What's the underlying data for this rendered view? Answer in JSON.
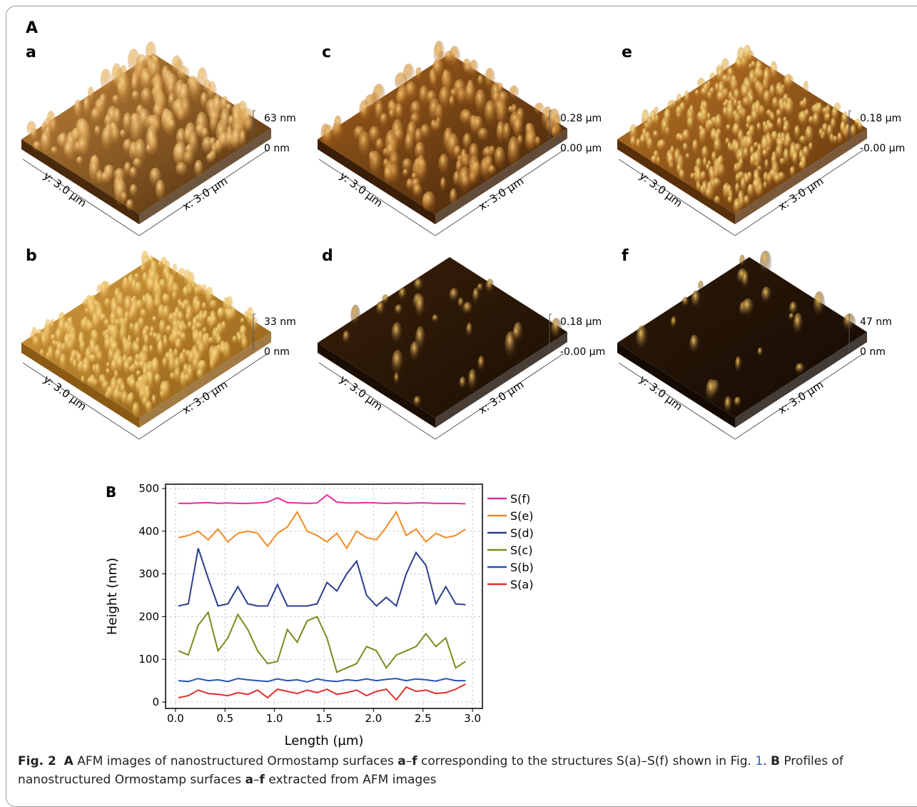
{
  "figure_label": "A",
  "panels": [
    {
      "label": "a",
      "z_top": "63 nm",
      "z_bottom": "0 nm",
      "y_axis": "y: 3.0 µm",
      "x_axis": "x: 3.0 µm"
    },
    {
      "label": "b",
      "z_top": "33 nm",
      "z_bottom": "0 nm",
      "y_axis": "y: 3.0 µm",
      "x_axis": "x: 3.0 µm"
    },
    {
      "label": "c",
      "z_top": "0.28 µm",
      "z_bottom": "0.00 µm",
      "y_axis": "y: 3.0 µm",
      "x_axis": "x: 3.0 µm"
    },
    {
      "label": "d",
      "z_top": "0.18 µm",
      "z_bottom": "-0.00 µm",
      "y_axis": "y: 3.0 µm",
      "x_axis": "x: 3.0 µm"
    },
    {
      "label": "e",
      "z_top": "0.18 µm",
      "z_bottom": "-0.00 µm",
      "y_axis": "y: 3.0 µm",
      "x_axis": "x: 3.0 µm"
    },
    {
      "label": "f",
      "z_top": "47 nm",
      "z_bottom": "0 nm",
      "y_axis": "y: 3.0 µm",
      "x_axis": "x: 3.0 µm"
    }
  ],
  "chart_data": {
    "type": "line",
    "panel_label": "B",
    "x_label": "Length (µm)",
    "y_label": "Height (nm)",
    "x": [
      0.03,
      0.13,
      0.23,
      0.33,
      0.43,
      0.53,
      0.63,
      0.73,
      0.83,
      0.93,
      1.03,
      1.13,
      1.23,
      1.33,
      1.43,
      1.53,
      1.63,
      1.73,
      1.83,
      1.93,
      2.03,
      2.13,
      2.23,
      2.33,
      2.43,
      2.53,
      2.63,
      2.73,
      2.83,
      2.93
    ],
    "series": [
      {
        "name": "S(f)",
        "color": "#e0309a",
        "values": [
          465,
          465,
          466,
          467,
          465,
          466,
          465,
          465,
          466,
          468,
          478,
          467,
          466,
          465,
          466,
          485,
          468,
          466,
          466,
          467,
          466,
          465,
          466,
          465,
          466,
          466,
          465,
          465,
          465,
          464
        ]
      },
      {
        "name": "S(e)",
        "color": "#f08a24",
        "values": [
          385,
          390,
          400,
          380,
          405,
          375,
          395,
          400,
          395,
          365,
          395,
          410,
          445,
          400,
          390,
          375,
          395,
          360,
          400,
          385,
          380,
          410,
          445,
          390,
          405,
          375,
          395,
          385,
          390,
          405
        ]
      },
      {
        "name": "S(d)",
        "color": "#2b3d8f",
        "values": [
          225,
          230,
          360,
          290,
          225,
          230,
          270,
          230,
          225,
          225,
          275,
          225,
          225,
          225,
          230,
          280,
          260,
          300,
          330,
          250,
          225,
          245,
          225,
          300,
          350,
          320,
          230,
          270,
          230,
          228
        ]
      },
      {
        "name": "S(c)",
        "color": "#7a8c1e",
        "values": [
          120,
          110,
          180,
          210,
          120,
          150,
          205,
          170,
          120,
          90,
          95,
          170,
          140,
          190,
          200,
          150,
          70,
          80,
          90,
          130,
          120,
          80,
          110,
          120,
          130,
          160,
          130,
          150,
          80,
          95
        ]
      },
      {
        "name": "S(b)",
        "color": "#2454b8",
        "values": [
          50,
          48,
          55,
          50,
          52,
          48,
          55,
          52,
          50,
          48,
          54,
          50,
          52,
          47,
          54,
          50,
          48,
          52,
          50,
          54,
          50,
          53,
          55,
          50,
          54,
          52,
          49,
          55,
          50,
          50
        ]
      },
      {
        "name": "S(a)",
        "color": "#e03030",
        "values": [
          10,
          15,
          28,
          20,
          18,
          15,
          22,
          18,
          28,
          10,
          30,
          25,
          20,
          28,
          22,
          30,
          18,
          22,
          28,
          15,
          25,
          30,
          5,
          35,
          25,
          28,
          20,
          22,
          30,
          42
        ]
      }
    ],
    "xlim": [
      -0.1,
      3.1
    ],
    "ylim": [
      -15,
      510
    ],
    "xticks": [
      {
        "value": 0,
        "label": "0.0"
      },
      0.5,
      {
        "value": 1,
        "label": "1.0"
      },
      1.5,
      {
        "value": 2,
        "label": "2.0"
      },
      2.5,
      {
        "value": 3,
        "label": "3.0"
      }
    ],
    "yticks": [
      0,
      100,
      200,
      300,
      400,
      500
    ],
    "grid": true
  },
  "caption": {
    "runs": [
      "Fig. 2",
      "A",
      "AFM images of nanostructured Ormostamp surfaces",
      "a",
      "–",
      "f",
      "corresponding to the structures S(a)–S(f) shown in Fig.",
      "1",
      ".",
      "B",
      "Profiles of nanostructured Ormostamp surfaces",
      "a",
      "–",
      "f",
      "extracted from AFM images"
    ]
  }
}
